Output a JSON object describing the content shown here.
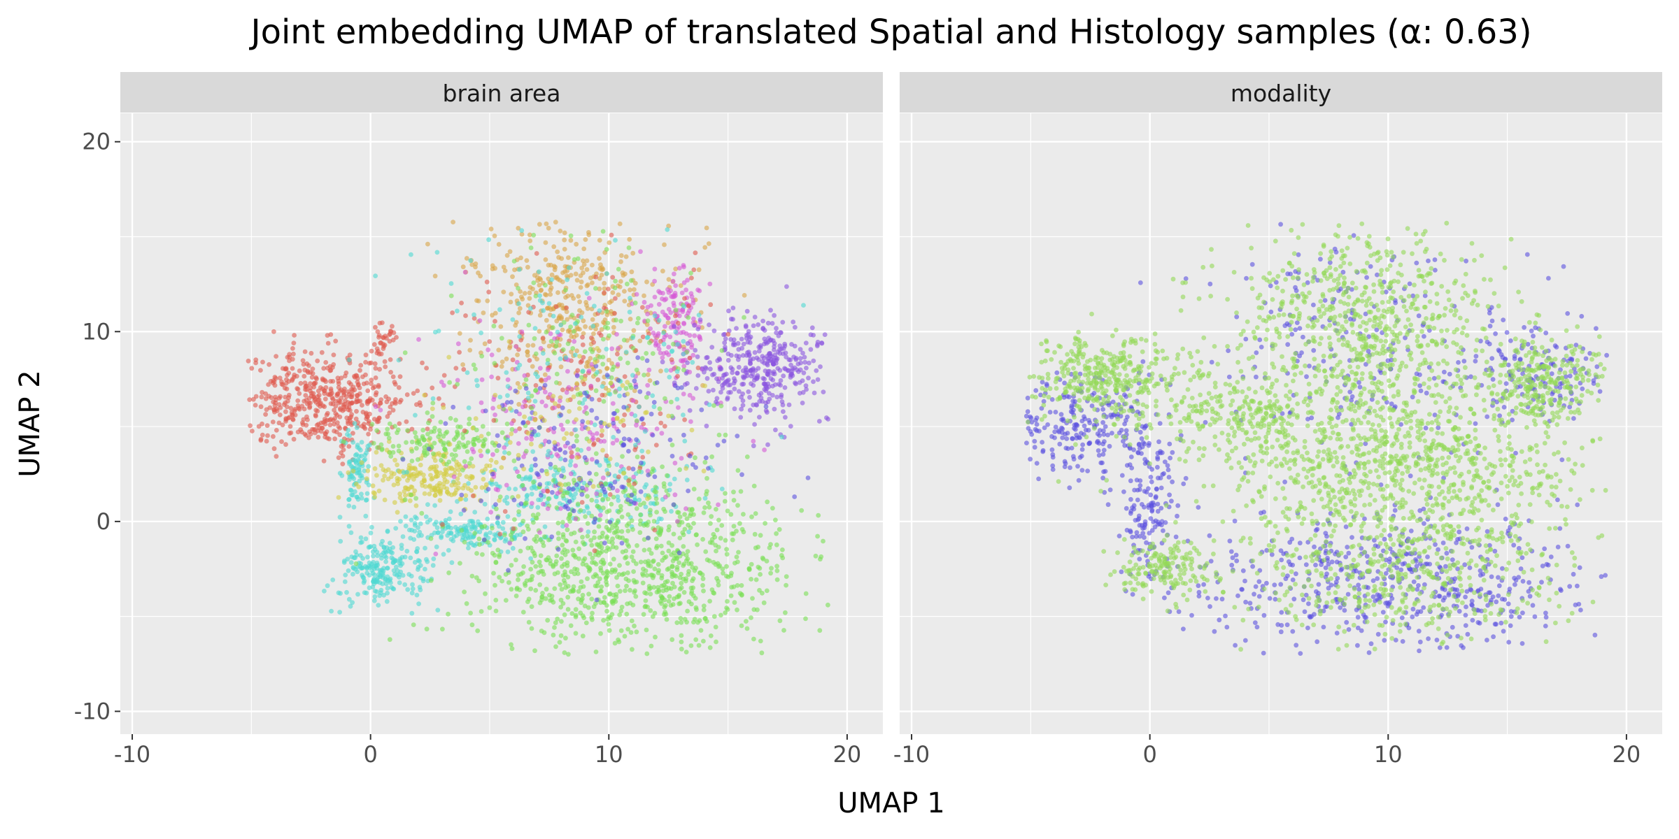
{
  "chart_data": {
    "type": "scatter",
    "title": "Joint embedding UMAP of translated Spatial and Histology samples (α: 0.63)",
    "xlabel": "UMAP 1",
    "ylabel": "UMAP 2",
    "xlim": [
      -10.5,
      21.5
    ],
    "ylim": [
      -11.2,
      21.5
    ],
    "x_ticks": [
      -10,
      0,
      10,
      20
    ],
    "y_ticks": [
      -10,
      0,
      10,
      20
    ],
    "x_tick_labels": [
      "-10",
      "0",
      "10",
      "20"
    ],
    "y_tick_labels": [
      "-10",
      "0",
      "10",
      "20"
    ],
    "grid": true,
    "legend": "none",
    "colors": {
      "panel_bg": "#ebebeb",
      "strip_bg": "#d9d9d9",
      "grid": "#ffffff",
      "red": "#e05a4f",
      "cyan": "#4fd8d2",
      "yellow": "#d4cd45",
      "orange": "#d9a548",
      "magenta": "#d65ad6",
      "purple": "#8a55e0",
      "green": "#7adf55",
      "blue": "#5b52e0",
      "lightgreen": "#93d957"
    },
    "panels": [
      {
        "strip": "brain area",
        "clusters": [
          {
            "color": "red",
            "center": [
              -2.0,
              6.4
            ],
            "spread": [
              1.9,
              1.3
            ],
            "n": 520
          },
          {
            "color": "red",
            "center": [
              0.5,
              9.6
            ],
            "spread": [
              0.25,
              0.6
            ],
            "n": 30
          },
          {
            "color": "cyan",
            "center": [
              -0.6,
              2.6
            ],
            "spread": [
              0.3,
              1.2
            ],
            "n": 90
          },
          {
            "color": "cyan",
            "center": [
              0.5,
              -2.6
            ],
            "spread": [
              1.0,
              0.9
            ],
            "n": 220
          },
          {
            "color": "cyan",
            "center": [
              4.0,
              -0.5
            ],
            "spread": [
              1.6,
              0.5
            ],
            "n": 160
          },
          {
            "color": "cyan",
            "center": [
              9.0,
              1.6
            ],
            "spread": [
              2.5,
              1.0
            ],
            "n": 200
          },
          {
            "color": "yellow",
            "center": [
              2.5,
              2.3
            ],
            "spread": [
              1.4,
              0.8
            ],
            "n": 220
          },
          {
            "color": "orange",
            "center": [
              8.5,
              11.5
            ],
            "spread": [
              2.3,
              2.4
            ],
            "n": 420
          },
          {
            "color": "magenta",
            "center": [
              12.8,
              10.5
            ],
            "spread": [
              0.7,
              1.5
            ],
            "n": 140
          },
          {
            "color": "purple",
            "center": [
              16.5,
              8.0
            ],
            "spread": [
              1.4,
              1.3
            ],
            "n": 380
          },
          {
            "color": "green",
            "center": [
              11.0,
              -2.3
            ],
            "spread": [
              3.4,
              2.3
            ],
            "n": 950
          },
          {
            "color": "green",
            "center": [
              2.8,
              4.2
            ],
            "spread": [
              1.5,
              0.6
            ],
            "n": 130
          },
          {
            "color": "red",
            "center": [
              9.0,
              7.5
            ],
            "spread": [
              3.0,
              3.8
            ],
            "n": 160
          },
          {
            "color": "magenta",
            "center": [
              8.5,
              5.5
            ],
            "spread": [
              3.0,
              2.6
            ],
            "n": 200
          },
          {
            "color": "green",
            "center": [
              9.0,
              8.0
            ],
            "spread": [
              3.0,
              3.2
            ],
            "n": 160
          },
          {
            "color": "cyan",
            "center": [
              8.5,
              8.5
            ],
            "spread": [
              3.2,
              3.0
            ],
            "n": 130
          },
          {
            "color": "blue",
            "center": [
              9.5,
              3.5
            ],
            "spread": [
              3.0,
              2.6
            ],
            "n": 160
          },
          {
            "color": "yellow",
            "center": [
              8.0,
              5.0
            ],
            "spread": [
              2.6,
              2.0
            ],
            "n": 80
          }
        ]
      },
      {
        "strip": "modality",
        "clusters": [
          {
            "color": "blue",
            "center": [
              -3.0,
              5.0
            ],
            "spread": [
              1.8,
              1.3
            ],
            "n": 280
          },
          {
            "color": "blue",
            "center": [
              0.0,
              0.5
            ],
            "spread": [
              0.6,
              2.0
            ],
            "n": 140
          },
          {
            "color": "blue",
            "center": [
              10.5,
              -3.2
            ],
            "spread": [
              4.0,
              1.9
            ],
            "n": 560
          },
          {
            "color": "blue",
            "center": [
              9.0,
              9.0
            ],
            "spread": [
              3.2,
              3.2
            ],
            "n": 240
          },
          {
            "color": "blue",
            "center": [
              16.5,
              8.0
            ],
            "spread": [
              1.5,
              1.3
            ],
            "n": 140
          },
          {
            "color": "lightgreen",
            "center": [
              -1.8,
              7.5
            ],
            "spread": [
              1.6,
              1.2
            ],
            "n": 380
          },
          {
            "color": "lightgreen",
            "center": [
              0.5,
              -2.4
            ],
            "spread": [
              1.0,
              0.8
            ],
            "n": 160
          },
          {
            "color": "lightgreen",
            "center": [
              9.0,
              10.5
            ],
            "spread": [
              2.8,
              2.8
            ],
            "n": 700
          },
          {
            "color": "lightgreen",
            "center": [
              10.5,
              3.0
            ],
            "spread": [
              4.0,
              2.2
            ],
            "n": 900
          },
          {
            "color": "lightgreen",
            "center": [
              10.5,
              -2.5
            ],
            "spread": [
              3.3,
              1.8
            ],
            "n": 450
          },
          {
            "color": "lightgreen",
            "center": [
              16.5,
              7.5
            ],
            "spread": [
              1.3,
              1.1
            ],
            "n": 260
          },
          {
            "color": "lightgreen",
            "center": [
              4.0,
              5.5
            ],
            "spread": [
              1.8,
              1.0
            ],
            "n": 200
          }
        ]
      }
    ]
  }
}
